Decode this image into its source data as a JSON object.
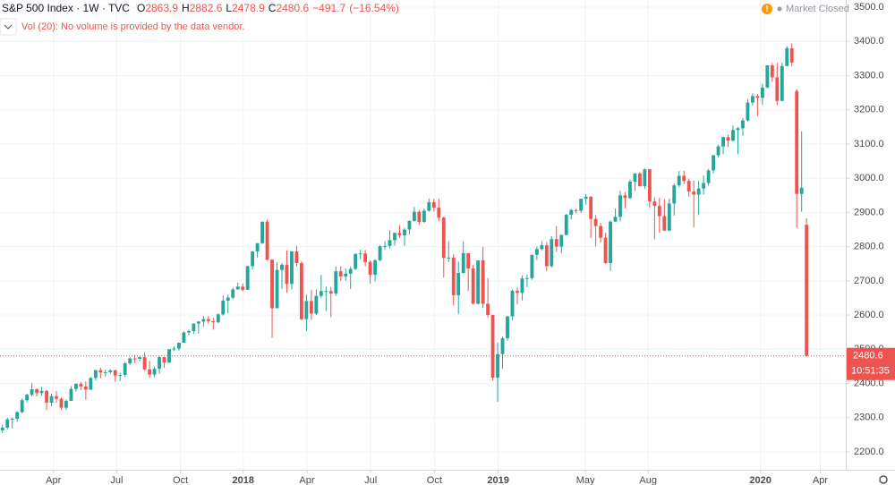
{
  "chart_data": {
    "type": "candlestick",
    "header": {
      "symbol": "S&P 500 Index",
      "interval": "1W",
      "source": "TVC",
      "ohlc": [
        {
          "label": "O",
          "value": 2863.9
        },
        {
          "label": "H",
          "value": 2882.6
        },
        {
          "label": "L",
          "value": 2478.9
        },
        {
          "label": "C",
          "value": 2480.6
        }
      ],
      "change": {
        "value": -491.7,
        "label": "−491.7"
      },
      "change_percent": {
        "value": -16.54,
        "label": "(−16.54%)"
      }
    },
    "volume_note": "Vol (20): No volume is provided by the data vendor.",
    "status": "Market Closed",
    "countdown": "10:51:35",
    "up_color": "#26a69a",
    "down_color": "#ef5350",
    "candles": [
      [
        2263,
        2279,
        2255,
        2271
      ],
      [
        2271,
        2300,
        2266,
        2295
      ],
      [
        2295,
        2300,
        2268,
        2297
      ],
      [
        2297,
        2319,
        2288,
        2316
      ],
      [
        2316,
        2356,
        2313,
        2351
      ],
      [
        2351,
        2370,
        2345,
        2367
      ],
      [
        2367,
        2401,
        2362,
        2383
      ],
      [
        2383,
        2386,
        2362,
        2372
      ],
      [
        2372,
        2390,
        2364,
        2378
      ],
      [
        2378,
        2381,
        2322,
        2344
      ],
      [
        2344,
        2370,
        2333,
        2363
      ],
      [
        2363,
        2378,
        2344,
        2355
      ],
      [
        2355,
        2360,
        2322,
        2329
      ],
      [
        2329,
        2353,
        2323,
        2349
      ],
      [
        2349,
        2392,
        2349,
        2384
      ],
      [
        2384,
        2400,
        2377,
        2399
      ],
      [
        2399,
        2404,
        2381,
        2391
      ],
      [
        2391,
        2406,
        2353,
        2382
      ],
      [
        2382,
        2419,
        2381,
        2416
      ],
      [
        2416,
        2440,
        2409,
        2439
      ],
      [
        2439,
        2446,
        2415,
        2432
      ],
      [
        2432,
        2441,
        2419,
        2433
      ],
      [
        2433,
        2442,
        2428,
        2438
      ],
      [
        2438,
        2441,
        2405,
        2423
      ],
      [
        2423,
        2432,
        2407,
        2425
      ],
      [
        2425,
        2463,
        2419,
        2459
      ],
      [
        2459,
        2477,
        2453,
        2473
      ],
      [
        2473,
        2484,
        2459,
        2472
      ],
      [
        2472,
        2480,
        2466,
        2477
      ],
      [
        2477,
        2491,
        2437,
        2441
      ],
      [
        2441,
        2466,
        2417,
        2426
      ],
      [
        2426,
        2449,
        2418,
        2443
      ],
      [
        2443,
        2480,
        2428,
        2477
      ],
      [
        2477,
        2477,
        2446,
        2461
      ],
      [
        2461,
        2500,
        2460,
        2500
      ],
      [
        2500,
        2508,
        2495,
        2502
      ],
      [
        2502,
        2520,
        2496,
        2519
      ],
      [
        2519,
        2552,
        2519,
        2549
      ],
      [
        2549,
        2557,
        2541,
        2553
      ],
      [
        2553,
        2576,
        2545,
        2575
      ],
      [
        2575,
        2582,
        2545,
        2581
      ],
      [
        2581,
        2597,
        2566,
        2588
      ],
      [
        2588,
        2597,
        2575,
        2582
      ],
      [
        2582,
        2591,
        2557,
        2579
      ],
      [
        2579,
        2605,
        2576,
        2602
      ],
      [
        2602,
        2657,
        2598,
        2642
      ],
      [
        2642,
        2660,
        2605,
        2651
      ],
      [
        2651,
        2680,
        2646,
        2675
      ],
      [
        2675,
        2695,
        2674,
        2683
      ],
      [
        2683,
        2692,
        2669,
        2674
      ],
      [
        2674,
        2744,
        2674,
        2743
      ],
      [
        2743,
        2787,
        2733,
        2786
      ],
      [
        2786,
        2810,
        2768,
        2810
      ],
      [
        2810,
        2873,
        2808,
        2873
      ],
      [
        2873,
        2879,
        2759,
        2762
      ],
      [
        2762,
        2763,
        2533,
        2620
      ],
      [
        2620,
        2754,
        2620,
        2732
      ],
      [
        2732,
        2752,
        2676,
        2747
      ],
      [
        2747,
        2789,
        2665,
        2691
      ],
      [
        2691,
        2787,
        2675,
        2786
      ],
      [
        2786,
        2802,
        2742,
        2752
      ],
      [
        2752,
        2757,
        2585,
        2588
      ],
      [
        2588,
        2660,
        2553,
        2641
      ],
      [
        2641,
        2673,
        2586,
        2604
      ],
      [
        2604,
        2674,
        2600,
        2656
      ],
      [
        2656,
        2718,
        2650,
        2670
      ],
      [
        2670,
        2683,
        2612,
        2670
      ],
      [
        2670,
        2682,
        2594,
        2663
      ],
      [
        2663,
        2742,
        2656,
        2728
      ],
      [
        2728,
        2742,
        2701,
        2713
      ],
      [
        2713,
        2736,
        2700,
        2721
      ],
      [
        2721,
        2742,
        2676,
        2735
      ],
      [
        2735,
        2779,
        2731,
        2779
      ],
      [
        2779,
        2791,
        2764,
        2780
      ],
      [
        2780,
        2790,
        2743,
        2755
      ],
      [
        2755,
        2760,
        2692,
        2718
      ],
      [
        2718,
        2764,
        2698,
        2760
      ],
      [
        2760,
        2804,
        2758,
        2801
      ],
      [
        2801,
        2816,
        2791,
        2802
      ],
      [
        2802,
        2848,
        2795,
        2819
      ],
      [
        2819,
        2841,
        2803,
        2840
      ],
      [
        2840,
        2863,
        2826,
        2833
      ],
      [
        2833,
        2855,
        2802,
        2850
      ],
      [
        2850,
        2877,
        2835,
        2875
      ],
      [
        2875,
        2916,
        2873,
        2902
      ],
      [
        2902,
        2907,
        2864,
        2872
      ],
      [
        2872,
        2912,
        2870,
        2905
      ],
      [
        2905,
        2941,
        2902,
        2930
      ],
      [
        2930,
        2940,
        2903,
        2914
      ],
      [
        2914,
        2940,
        2874,
        2885
      ],
      [
        2885,
        2888,
        2710,
        2767
      ],
      [
        2767,
        2816,
        2755,
        2768
      ],
      [
        2768,
        2778,
        2628,
        2658
      ],
      [
        2658,
        2756,
        2603,
        2723
      ],
      [
        2723,
        2815,
        2722,
        2781
      ],
      [
        2781,
        2781,
        2670,
        2736
      ],
      [
        2736,
        2747,
        2631,
        2633
      ],
      [
        2633,
        2760,
        2631,
        2760
      ],
      [
        2760,
        2800,
        2621,
        2633
      ],
      [
        2633,
        2708,
        2593,
        2600
      ],
      [
        2600,
        2601,
        2409,
        2417
      ],
      [
        2417,
        2520,
        2346,
        2486
      ],
      [
        2486,
        2538,
        2443,
        2532
      ],
      [
        2532,
        2598,
        2525,
        2596
      ],
      [
        2596,
        2675,
        2585,
        2671
      ],
      [
        2671,
        2681,
        2631,
        2665
      ],
      [
        2665,
        2716,
        2643,
        2707
      ],
      [
        2707,
        2718,
        2682,
        2708
      ],
      [
        2708,
        2776,
        2703,
        2776
      ],
      [
        2776,
        2800,
        2761,
        2793
      ],
      [
        2793,
        2816,
        2789,
        2804
      ],
      [
        2804,
        2814,
        2729,
        2743
      ],
      [
        2743,
        2830,
        2739,
        2822
      ],
      [
        2822,
        2860,
        2785,
        2800
      ],
      [
        2800,
        2836,
        2780,
        2834
      ],
      [
        2834,
        2896,
        2834,
        2893
      ],
      [
        2893,
        2910,
        2880,
        2907
      ],
      [
        2907,
        2911,
        2897,
        2905
      ],
      [
        2905,
        2940,
        2898,
        2940
      ],
      [
        2940,
        2954,
        2923,
        2946
      ],
      [
        2946,
        2947,
        2825,
        2881
      ],
      [
        2881,
        2892,
        2801,
        2860
      ],
      [
        2860,
        2870,
        2812,
        2826
      ],
      [
        2826,
        2841,
        2750,
        2752
      ],
      [
        2752,
        2877,
        2729,
        2873
      ],
      [
        2873,
        2911,
        2873,
        2887
      ],
      [
        2887,
        2964,
        2874,
        2950
      ],
      [
        2950,
        2959,
        2912,
        2942
      ],
      [
        2942,
        2996,
        2939,
        2990
      ],
      [
        2990,
        3014,
        2963,
        3014
      ],
      [
        3014,
        3017,
        2975,
        2977
      ],
      [
        2977,
        3028,
        2969,
        3026
      ],
      [
        3026,
        3027,
        2914,
        2932
      ],
      [
        2932,
        2944,
        2822,
        2919
      ],
      [
        2919,
        2943,
        2840,
        2889
      ],
      [
        2889,
        2939,
        2846,
        2847
      ],
      [
        2847,
        2940,
        2845,
        2926
      ],
      [
        2926,
        2985,
        2891,
        2979
      ],
      [
        2979,
        3021,
        2973,
        3007
      ],
      [
        3007,
        3022,
        2983,
        2992
      ],
      [
        2992,
        2999,
        2946,
        2961
      ],
      [
        2961,
        2993,
        2856,
        2952
      ],
      [
        2952,
        2993,
        2892,
        2970
      ],
      [
        2970,
        3008,
        2952,
        2986
      ],
      [
        2986,
        3027,
        2978,
        3023
      ],
      [
        3023,
        3068,
        3014,
        3067
      ],
      [
        3067,
        3098,
        3060,
        3093
      ],
      [
        3093,
        3122,
        3070,
        3120
      ],
      [
        3120,
        3127,
        3091,
        3110
      ],
      [
        3110,
        3154,
        3107,
        3141
      ],
      [
        3141,
        3150,
        3070,
        3146
      ],
      [
        3146,
        3176,
        3124,
        3169
      ],
      [
        3169,
        3231,
        3166,
        3221
      ],
      [
        3221,
        3248,
        3212,
        3240
      ],
      [
        3240,
        3246,
        3182,
        3235
      ],
      [
        3235,
        3276,
        3214,
        3265
      ],
      [
        3265,
        3330,
        3263,
        3330
      ],
      [
        3330,
        3337,
        3282,
        3295
      ],
      [
        3295,
        3337,
        3214,
        3226
      ],
      [
        3226,
        3338,
        3225,
        3328
      ],
      [
        3328,
        3386,
        3328,
        3380
      ],
      [
        3380,
        3394,
        3327,
        3338
      ],
      [
        3255,
        3260,
        2855,
        2954
      ],
      [
        2954,
        3137,
        2902,
        2972
      ],
      [
        2863.9,
        2882.6,
        2478.9,
        2480.6
      ]
    ],
    "xlim": [
      -0.5,
      172
    ],
    "xticks": [
      {
        "value": 10.4,
        "label": "Apr"
      },
      {
        "value": 23.3,
        "label": "Jul"
      },
      {
        "value": 36.3,
        "label": "Oct"
      },
      {
        "value": 49.1,
        "label": "2018"
      },
      {
        "value": 62.1,
        "label": "Apr"
      },
      {
        "value": 75.1,
        "label": "Jul"
      },
      {
        "value": 88.1,
        "label": "Oct"
      },
      {
        "value": 101.1,
        "label": "2019"
      },
      {
        "value": 118.9,
        "label": "May"
      },
      {
        "value": 131.7,
        "label": "Aug"
      },
      {
        "value": 154.6,
        "label": "2020"
      },
      {
        "value": 166.8,
        "label": "Apr"
      }
    ],
    "ylim": [
      2200,
      3500
    ],
    "yticks": [
      {
        "value": 2200,
        "label": "2200.0"
      },
      {
        "value": 2300,
        "label": "2300.0"
      },
      {
        "value": 2400,
        "label": "2400.0"
      },
      {
        "value": 2500,
        "label": "2500.0"
      },
      {
        "value": 2600,
        "label": "2600.0"
      },
      {
        "value": 2700,
        "label": "2700.0"
      },
      {
        "value": 2800,
        "label": "2800.0"
      },
      {
        "value": 2900,
        "label": "2900.0"
      },
      {
        "value": 3000,
        "label": "3000.0"
      },
      {
        "value": 3100,
        "label": "3100.0"
      },
      {
        "value": 3200,
        "label": "3200.0"
      },
      {
        "value": 3300,
        "label": "3300.0"
      },
      {
        "value": 3400,
        "label": "3400.0"
      },
      {
        "value": 3500,
        "label": "3500.0"
      }
    ],
    "grid": true
  }
}
